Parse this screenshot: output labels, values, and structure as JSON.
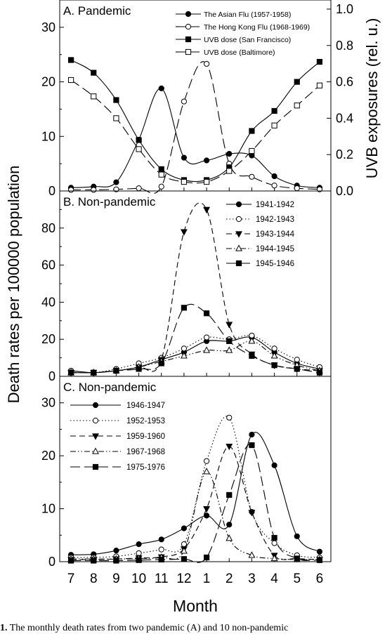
{
  "figure": {
    "x_axis_label": "Month",
    "y_axis_label_left": "Death rates per 100000 population",
    "y_axis_label_right": "UVB exposures (rel. u.)",
    "month_ticks": [
      "7",
      "8",
      "9",
      "10",
      "11",
      "12",
      "1",
      "2",
      "3",
      "4",
      "5",
      "6"
    ],
    "caption_num": "1.",
    "caption_text": " The monthly death rates from two pandemic (A) and 10 non-pandemic"
  },
  "chart_data": [
    {
      "type": "line",
      "panel_label": "A. Pandemic",
      "x": [
        "7",
        "8",
        "9",
        "10",
        "11",
        "12",
        "1",
        "2",
        "3",
        "4",
        "5",
        "6"
      ],
      "ylim": [
        0,
        35
      ],
      "yticks": [
        0,
        10,
        20,
        30
      ],
      "y2lim": [
        0,
        1.05
      ],
      "y2ticks": [
        "0.0",
        "0.2",
        "0.4",
        "0.6",
        "0.8",
        "1.0"
      ],
      "legend": "top-right",
      "series": [
        {
          "name": "The Asian Flu (1957-1958)",
          "axis": "left",
          "marker": "filled-circle",
          "dash": "solid",
          "values": [
            0.6,
            0.8,
            1.6,
            9.4,
            18.8,
            6.1,
            5.6,
            6.8,
            6.5,
            2.7,
            1.0,
            0.6
          ]
        },
        {
          "name": "The Hong Kong Flu (1968-1969)",
          "axis": "left",
          "marker": "open-circle",
          "dash": "long-dash",
          "values": [
            0.2,
            0.2,
            0.3,
            0.5,
            0.8,
            16.4,
            23.3,
            5.0,
            2.6,
            1.0,
            0.5,
            0.3
          ]
        },
        {
          "name": "UVB dose (San Francisco)",
          "axis": "right",
          "marker": "filled-square",
          "dash": "solid",
          "values": [
            0.72,
            0.65,
            0.5,
            0.28,
            0.12,
            0.06,
            0.06,
            0.13,
            0.33,
            0.44,
            0.6,
            0.71
          ]
        },
        {
          "name": "UVB dose (Baltimore)",
          "axis": "right",
          "marker": "open-square",
          "dash": "long-dash",
          "values": [
            0.61,
            0.52,
            0.4,
            0.23,
            0.09,
            0.05,
            0.05,
            0.11,
            0.22,
            0.36,
            0.47,
            0.58
          ]
        }
      ]
    },
    {
      "type": "line",
      "panel_label": "B. Non-pandemic",
      "x": [
        "7",
        "8",
        "9",
        "10",
        "11",
        "12",
        "1",
        "2",
        "3",
        "4",
        "5",
        "6"
      ],
      "ylim": [
        0,
        100
      ],
      "yticks": [
        0,
        20,
        40,
        60,
        80
      ],
      "legend": "top-right",
      "series": [
        {
          "name": "1941-1942",
          "marker": "filled-circle",
          "dash": "solid",
          "values": [
            3,
            2,
            3,
            5,
            9,
            13,
            19,
            19,
            21,
            13,
            7,
            4
          ]
        },
        {
          "name": "1942-1943",
          "marker": "open-circle",
          "dash": "dot",
          "values": [
            3,
            2,
            4,
            7,
            10,
            15,
            21,
            20,
            22,
            15,
            9,
            5
          ]
        },
        {
          "name": "1943-1944",
          "marker": "filled-triangle-down",
          "dash": "dash",
          "values": [
            2,
            2,
            3,
            5,
            9,
            78,
            90,
            28,
            12,
            6,
            4,
            3
          ]
        },
        {
          "name": "1944-1945",
          "marker": "open-triangle-up",
          "dash": "dash-dot-dot",
          "values": [
            2,
            2,
            3,
            5,
            8,
            11,
            14,
            14,
            19,
            11,
            6,
            3
          ]
        },
        {
          "name": "1945-1946",
          "marker": "filled-square",
          "dash": "long-dash",
          "values": [
            2,
            2,
            3,
            4,
            7,
            37,
            34,
            19,
            11,
            6,
            4,
            2
          ]
        }
      ]
    },
    {
      "type": "line",
      "panel_label": "C. Non-pandemic",
      "x": [
        "7",
        "8",
        "9",
        "10",
        "11",
        "12",
        "1",
        "2",
        "3",
        "4",
        "5",
        "6"
      ],
      "ylim": [
        0,
        35
      ],
      "yticks": [
        0,
        10,
        20,
        30
      ],
      "legend": "top-left",
      "series": [
        {
          "name": "1946-1947",
          "marker": "filled-circle",
          "dash": "solid",
          "values": [
            1.3,
            1.4,
            2.1,
            3.3,
            4.2,
            6.3,
            8.7,
            7.0,
            24.0,
            18.2,
            4.8,
            1.9
          ]
        },
        {
          "name": "1952-1953",
          "marker": "open-circle",
          "dash": "dot",
          "values": [
            0.8,
            0.8,
            1.0,
            1.6,
            2.3,
            3.3,
            19.0,
            27.2,
            9.4,
            3.5,
            1.2,
            0.8
          ]
        },
        {
          "name": "1959-1960",
          "marker": "filled-triangle-down",
          "dash": "dash",
          "values": [
            0.4,
            0.4,
            0.5,
            0.7,
            0.9,
            2.4,
            10.0,
            21.8,
            9.3,
            1.2,
            0.6,
            0.4
          ]
        },
        {
          "name": "1967-1968",
          "marker": "open-triangle-up",
          "dash": "dash-dot-dot",
          "values": [
            0.5,
            0.5,
            0.5,
            0.6,
            0.8,
            2.0,
            17.0,
            4.4,
            1.2,
            0.6,
            0.4,
            0.4
          ]
        },
        {
          "name": "1975-1976",
          "marker": "filled-square",
          "dash": "long-dash",
          "values": [
            0.2,
            0.2,
            0.2,
            0.3,
            0.4,
            0.5,
            0.8,
            12.6,
            22.0,
            4.5,
            0.6,
            0.3
          ]
        }
      ]
    }
  ]
}
